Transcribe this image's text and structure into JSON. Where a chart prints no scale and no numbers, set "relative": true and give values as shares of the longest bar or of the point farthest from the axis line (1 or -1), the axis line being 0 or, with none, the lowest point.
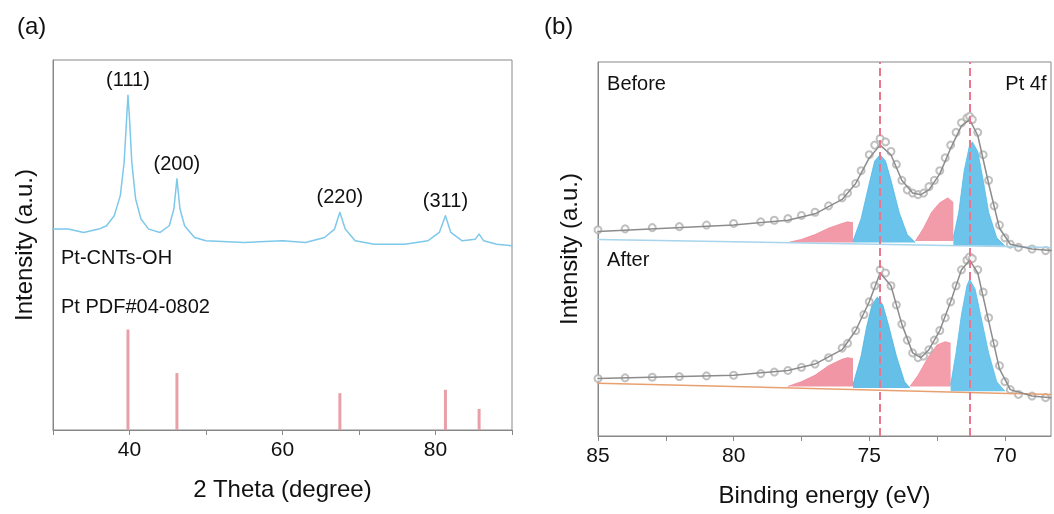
{
  "chart_data": [
    {
      "type": "line",
      "title": "(a)",
      "xlabel": "2 Theta (degree)",
      "ylabel": "Intensity (a.u.)",
      "relative": true,
      "tick_labels": "x",
      "xlim": [
        30,
        90
      ],
      "xticks": [
        {
          "value": 30,
          "label": null
        },
        40,
        {
          "value": 50,
          "label": null
        },
        60,
        {
          "value": 70,
          "label": null
        },
        80,
        {
          "value": 90,
          "label": null
        }
      ],
      "annotations": [
        {
          "text": "(111)",
          "x": 39.8,
          "y": 1.0
        },
        {
          "text": "(200)",
          "x": 46.2,
          "y": 0.75
        },
        {
          "text": "(220)",
          "x": 67.5,
          "y": 0.65
        },
        {
          "text": "(311)",
          "x": 81.3,
          "y": 0.64
        }
      ],
      "series": [
        {
          "name": "Pt-CNTs-OH",
          "color": "#7ec8ea",
          "x": [
            30,
            32,
            34,
            36,
            37,
            38,
            38.8,
            39.3,
            39.6,
            39.8,
            40.0,
            40.3,
            40.8,
            41.5,
            42.5,
            44,
            45.2,
            45.8,
            46.2,
            46.6,
            47.2,
            48.5,
            50,
            55,
            60,
            63,
            65.5,
            66.8,
            67.5,
            68.2,
            69.5,
            72,
            76,
            79,
            80.5,
            81.3,
            82,
            83.5,
            85.2,
            85.7,
            86.3,
            88,
            90
          ],
          "values": [
            0.6,
            0.6,
            0.59,
            0.6,
            0.61,
            0.64,
            0.7,
            0.8,
            0.92,
            1.0,
            0.93,
            0.8,
            0.69,
            0.63,
            0.6,
            0.59,
            0.61,
            0.66,
            0.75,
            0.66,
            0.61,
            0.575,
            0.565,
            0.56,
            0.565,
            0.56,
            0.575,
            0.6,
            0.65,
            0.6,
            0.565,
            0.555,
            0.555,
            0.565,
            0.59,
            0.64,
            0.59,
            0.565,
            0.57,
            0.585,
            0.565,
            0.555,
            0.55
          ]
        },
        {
          "name": "Pt PDF#04-0802",
          "type": "bar",
          "color": "#e8a0a8",
          "x": [
            39.8,
            46.2,
            67.5,
            81.3,
            85.7
          ],
          "values": [
            0.3,
            0.17,
            0.11,
            0.12,
            0.063
          ]
        }
      ]
    },
    {
      "type": "line",
      "title": "(b)",
      "xlabel": "Binding energy (eV)",
      "ylabel": "Intensity (a.u.)",
      "relative": true,
      "tick_labels": "x",
      "xlim": [
        85,
        68.3
      ],
      "xticks": [
        85,
        {
          "value": 82.5,
          "label": null
        },
        80,
        {
          "value": 77.5,
          "label": null
        },
        75,
        {
          "value": 72.5,
          "label": null
        },
        70
      ],
      "annotations": [
        "Before",
        "Pt 4f",
        "After"
      ],
      "ref_lines": [
        {
          "axis": "x",
          "value": 74.6,
          "color": "#e87890",
          "line_style": "dashed"
        },
        {
          "axis": "x",
          "value": 71.3,
          "color": "#e87890",
          "line_style": "dashed"
        }
      ],
      "series": [
        {
          "type": "area",
          "color": "#f08898",
          "x": [
            78,
            77.5,
            77,
            76.5,
            76,
            75.8,
            75.6
          ],
          "values": [
            0.605,
            0.615,
            0.63,
            0.65,
            0.665,
            0.67,
            0.667
          ]
        },
        {
          "type": "area",
          "color": "#f08a9a",
          "x": [
            73.3,
            73.0,
            72.7,
            72.4,
            72.1,
            71.9
          ],
          "values": [
            0.61,
            0.65,
            0.7,
            0.73,
            0.745,
            0.73
          ]
        },
        {
          "type": "area",
          "color": "#4fb8e6",
          "x": [
            75.6,
            75.3,
            75,
            74.8,
            74.6,
            74.4,
            74.2,
            73.9,
            73.6,
            73.3
          ],
          "values": [
            0.61,
            0.68,
            0.79,
            0.86,
            0.88,
            0.86,
            0.8,
            0.7,
            0.63,
            0.605
          ]
        },
        {
          "type": "area",
          "color": "#52bae8",
          "x": [
            71.9,
            71.7,
            71.5,
            71.3,
            71.2,
            71.0,
            70.8,
            70.6,
            70.3,
            70.0
          ],
          "values": [
            0.62,
            0.7,
            0.83,
            0.91,
            0.92,
            0.89,
            0.8,
            0.7,
            0.62,
            0.595
          ]
        },
        {
          "color": "#a8d4ec",
          "x": [
            85,
            68.3
          ],
          "values": [
            0.615,
            0.59
          ]
        },
        {
          "type": "scatter",
          "marker": "circle",
          "color": "#b0b0b0",
          "x": [
            85,
            84,
            83,
            82,
            81,
            80,
            79,
            78.5,
            78,
            77.5,
            77,
            76.5,
            76,
            75.8,
            75.5,
            75.3,
            75,
            74.8,
            74.6,
            74.4,
            74.2,
            74,
            73.8,
            73.6,
            73.4,
            73.2,
            73,
            72.8,
            72.6,
            72.4,
            72.2,
            72,
            71.8,
            71.6,
            71.4,
            71.3,
            71.2,
            71,
            70.8,
            70.6,
            70.4,
            70.2,
            70,
            69.8,
            69.5,
            69,
            68.5
          ],
          "values": [
            0.645,
            0.648,
            0.652,
            0.655,
            0.66,
            0.665,
            0.67,
            0.675,
            0.68,
            0.69,
            0.7,
            0.72,
            0.745,
            0.76,
            0.79,
            0.83,
            0.88,
            0.91,
            0.93,
            0.92,
            0.89,
            0.85,
            0.8,
            0.77,
            0.76,
            0.755,
            0.76,
            0.78,
            0.8,
            0.83,
            0.87,
            0.91,
            0.95,
            0.98,
            0.995,
            1.0,
            0.99,
            0.95,
            0.88,
            0.8,
            0.72,
            0.66,
            0.62,
            0.6,
            0.59,
            0.585,
            0.58
          ]
        },
        {
          "color": "#8c8c8c",
          "x": [
            85,
            80,
            78,
            77,
            76,
            75.5,
            75,
            74.6,
            74.2,
            73.8,
            73.4,
            73.1,
            72.8,
            72.4,
            72,
            71.6,
            71.3,
            71,
            70.6,
            70.2,
            69.8,
            69,
            68.3
          ],
          "values": [
            0.64,
            0.66,
            0.675,
            0.695,
            0.74,
            0.79,
            0.87,
            0.91,
            0.88,
            0.8,
            0.76,
            0.755,
            0.77,
            0.82,
            0.9,
            0.97,
            0.99,
            0.94,
            0.79,
            0.65,
            0.6,
            0.585,
            0.58
          ]
        },
        {
          "type": "area",
          "color": "#ee8494",
          "x": [
            78,
            77.5,
            77,
            76.5,
            76,
            75.8,
            75.6
          ],
          "values": [
            0.155,
            0.17,
            0.19,
            0.22,
            0.24,
            0.245,
            0.242
          ]
        },
        {
          "type": "area",
          "color": "#f28c9c",
          "x": [
            73.5,
            73.2,
            72.8,
            72.5,
            72.2,
            72.0
          ],
          "values": [
            0.155,
            0.19,
            0.25,
            0.285,
            0.295,
            0.29
          ]
        },
        {
          "type": "area",
          "color": "#4bb4e2",
          "x": [
            75.6,
            75.3,
            75.1,
            74.9,
            74.7,
            74.5,
            74.3,
            74.0,
            73.7,
            73.5
          ],
          "values": [
            0.16,
            0.25,
            0.34,
            0.41,
            0.435,
            0.41,
            0.35,
            0.25,
            0.17,
            0.15
          ]
        },
        {
          "type": "area",
          "color": "#55bcea",
          "x": [
            72.0,
            71.8,
            71.6,
            71.4,
            71.3,
            71.1,
            70.9,
            70.6,
            70.3,
            70.0
          ],
          "values": [
            0.16,
            0.26,
            0.38,
            0.47,
            0.49,
            0.46,
            0.38,
            0.26,
            0.17,
            0.14
          ]
        },
        {
          "color": "#e8a070",
          "x": [
            85,
            68.3
          ],
          "values": [
            0.165,
            0.13
          ]
        },
        {
          "type": "scatter",
          "marker": "circle",
          "color": "#b0b0b0",
          "x": [
            85,
            84,
            83,
            82,
            81,
            80,
            79,
            78.5,
            78,
            77.5,
            77,
            76.5,
            76,
            75.8,
            75.5,
            75.2,
            75,
            74.8,
            74.6,
            74.4,
            74.2,
            74,
            73.8,
            73.6,
            73.4,
            73.2,
            73,
            72.8,
            72.6,
            72.4,
            72.2,
            72,
            71.8,
            71.6,
            71.4,
            71.3,
            71.2,
            71,
            70.8,
            70.6,
            70.4,
            70.2,
            70,
            69.8,
            69.5,
            69,
            68.5
          ],
          "values": [
            0.18,
            0.182,
            0.184,
            0.186,
            0.188,
            0.19,
            0.195,
            0.2,
            0.205,
            0.215,
            0.225,
            0.245,
            0.275,
            0.29,
            0.33,
            0.38,
            0.42,
            0.47,
            0.52,
            0.51,
            0.47,
            0.41,
            0.35,
            0.3,
            0.26,
            0.245,
            0.25,
            0.27,
            0.3,
            0.33,
            0.37,
            0.42,
            0.47,
            0.52,
            0.55,
            0.56,
            0.555,
            0.52,
            0.45,
            0.37,
            0.29,
            0.22,
            0.17,
            0.145,
            0.13,
            0.125,
            0.12
          ]
        },
        {
          "color": "#8c8c8c",
          "x": [
            85,
            80,
            78,
            77,
            76,
            75.5,
            75,
            74.6,
            74.2,
            73.8,
            73.4,
            73.1,
            72.8,
            72.4,
            72,
            71.6,
            71.3,
            71,
            70.6,
            70.2,
            69.8,
            69,
            68.3
          ],
          "values": [
            0.18,
            0.19,
            0.205,
            0.225,
            0.27,
            0.33,
            0.42,
            0.51,
            0.47,
            0.35,
            0.26,
            0.245,
            0.27,
            0.33,
            0.42,
            0.52,
            0.55,
            0.51,
            0.36,
            0.21,
            0.145,
            0.125,
            0.12
          ]
        }
      ]
    }
  ]
}
